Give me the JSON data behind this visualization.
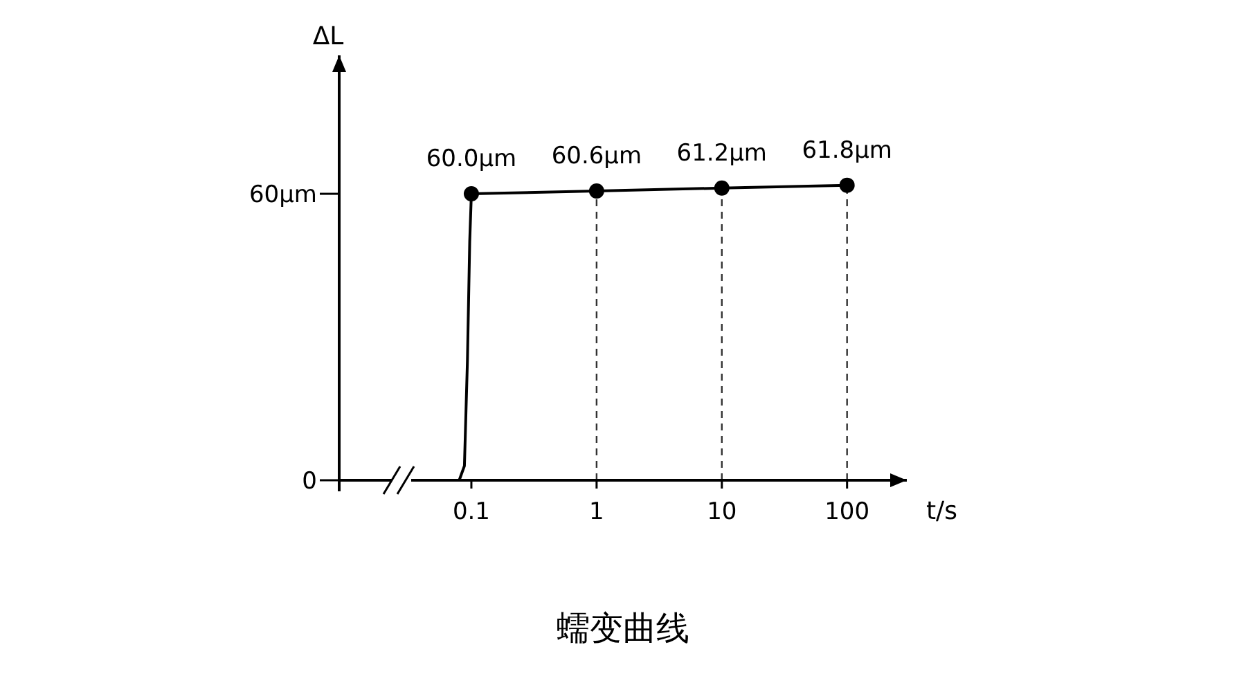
{
  "chart_data": {
    "type": "line",
    "xlabel": "t/s",
    "ylabel": "ΔL",
    "log": "x",
    "xlim": [
      0.0088,
      300
    ],
    "xticks": [
      0.1,
      1,
      10,
      100
    ],
    "ylim": [
      0,
      89
    ],
    "yticks": [
      0,
      {
        "value": 60,
        "label": "60μm"
      }
    ],
    "grid": false,
    "series": [
      {
        "color": "#000000",
        "marker": "none",
        "x": [
          0.036,
          0.08,
          0.088,
          0.093,
          0.097,
          0.1
        ],
        "values": [
          0,
          0,
          3,
          25,
          50,
          60
        ]
      },
      {
        "color": "#000000",
        "marker": "circle",
        "x": [
          0.1,
          1,
          10,
          100
        ],
        "values": [
          60.0,
          60.6,
          61.2,
          61.8
        ],
        "value_labels": [
          "60.0μm",
          "60.6μm",
          "61.2μm",
          "61.8μm"
        ]
      }
    ],
    "ref_lines": [
      {
        "axis": "x",
        "value": 1,
        "line_style": "dashed",
        "color": "#333333"
      },
      {
        "axis": "x",
        "value": 10,
        "line_style": "dashed",
        "color": "#333333"
      },
      {
        "axis": "x",
        "value": 100,
        "line_style": "dashed",
        "color": "#333333"
      }
    ],
    "annotations": [
      "蠕变曲线"
    ]
  }
}
